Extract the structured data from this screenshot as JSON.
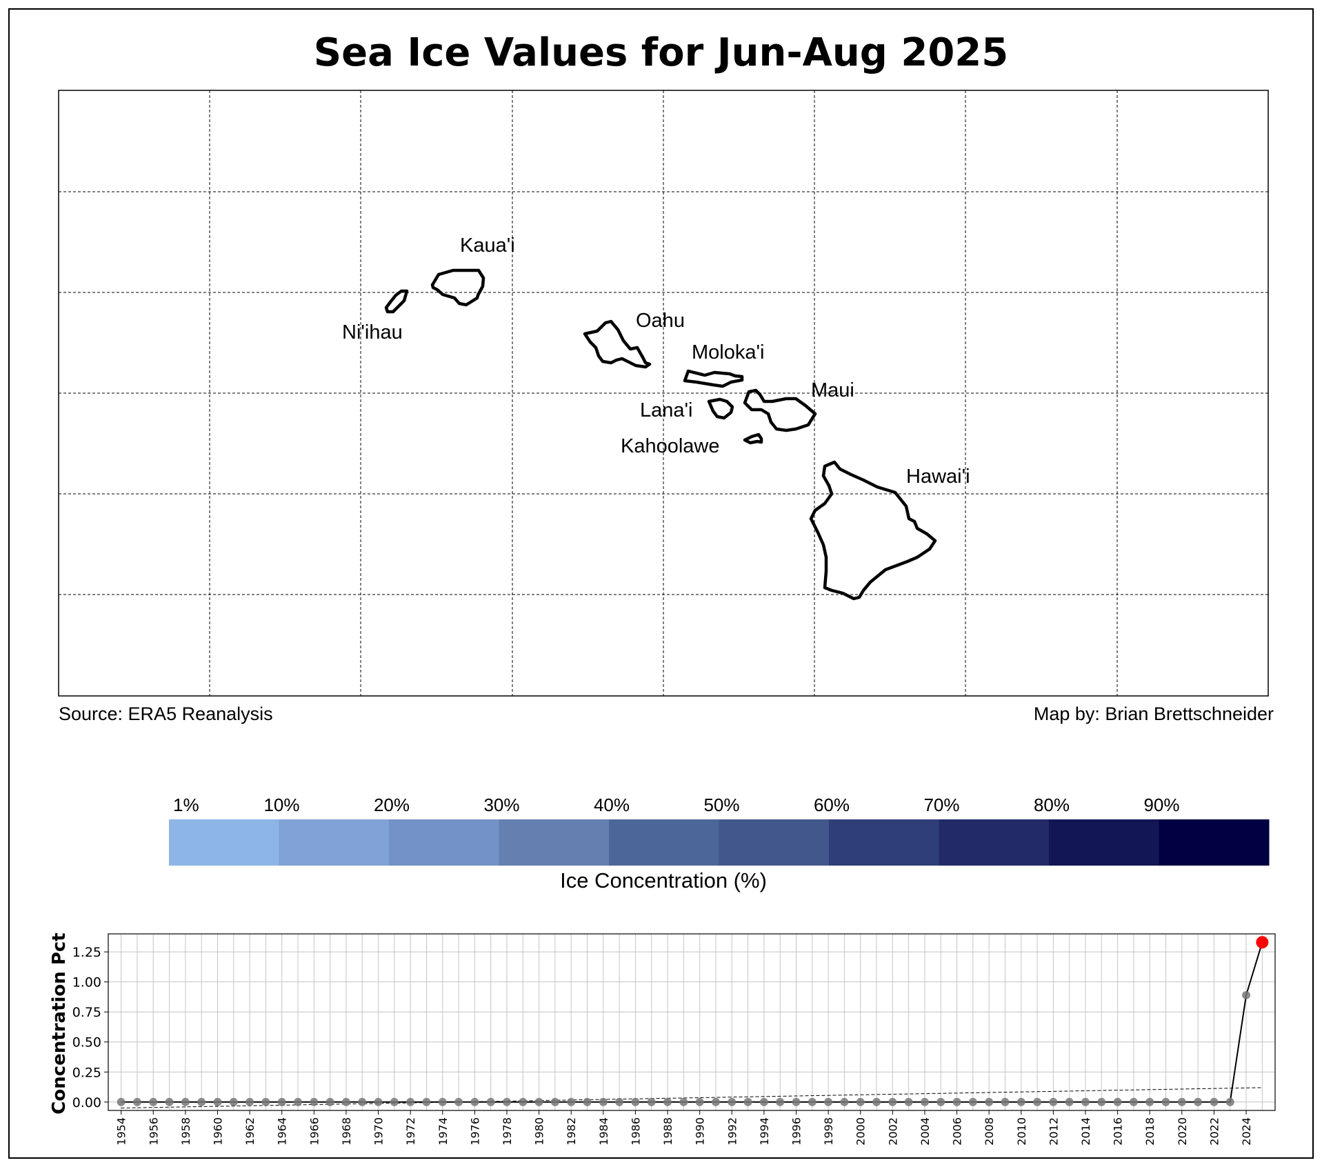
{
  "title": "Sea Ice Values for Jun-Aug 2025",
  "source": "Source: ERA5 Reanalysis",
  "credit": "Map by: Brian Brettschneider",
  "map": {
    "grid": true,
    "islands": [
      {
        "name": "Ni'ihau",
        "icon": "niihau-outline"
      },
      {
        "name": "Kaua'i",
        "icon": "kauai-outline"
      },
      {
        "name": "Oahu",
        "icon": "oahu-outline"
      },
      {
        "name": "Moloka'i",
        "icon": "molokai-outline"
      },
      {
        "name": "Lana'i",
        "icon": "lanai-outline"
      },
      {
        "name": "Maui",
        "icon": "maui-outline"
      },
      {
        "name": "Kahoolawe",
        "icon": "kahoolawe-outline"
      },
      {
        "name": "Hawai'i",
        "icon": "hawaii-outline"
      }
    ]
  },
  "colorbar": {
    "title": "Ice Concentration (%)",
    "ticks": [
      "1%",
      "10%",
      "20%",
      "30%",
      "40%",
      "50%",
      "60%",
      "70%",
      "80%",
      "90%"
    ],
    "colors": [
      "#8db5e6",
      "#80a2d6",
      "#7392c6",
      "#647fb0",
      "#4d6699",
      "#42578b",
      "#2f3e77",
      "#222a68",
      "#121655",
      "#000042"
    ]
  },
  "chart_data": {
    "type": "line",
    "title": "",
    "xlabel": "",
    "ylabel": "Concentration Pct",
    "xlim": [
      1953.2,
      2025.8
    ],
    "ylim": [
      -0.07,
      1.4
    ],
    "yticks": [
      0.0,
      0.25,
      0.5,
      0.75,
      1.0,
      1.25
    ],
    "ytick_labels": [
      "0.00",
      "0.25",
      "0.50",
      "0.75",
      "1.00",
      "1.25"
    ],
    "xticks": [
      1954,
      1956,
      1958,
      1960,
      1962,
      1964,
      1966,
      1968,
      1970,
      1972,
      1974,
      1976,
      1978,
      1980,
      1982,
      1984,
      1986,
      1988,
      1990,
      1992,
      1994,
      1996,
      1998,
      2000,
      2002,
      2004,
      2006,
      2008,
      2010,
      2012,
      2014,
      2016,
      2018,
      2020,
      2022,
      2024
    ],
    "grid": true,
    "series": [
      {
        "x": [
          1954,
          1955,
          1956,
          1957,
          1958,
          1959,
          1960,
          1961,
          1962,
          1963,
          1964,
          1965,
          1966,
          1967,
          1968,
          1969,
          1970,
          1971,
          1972,
          1973,
          1974,
          1975,
          1976,
          1977,
          1978,
          1979,
          1980,
          1981,
          1982,
          1983,
          1984,
          1985,
          1986,
          1987,
          1988,
          1989,
          1990,
          1991,
          1992,
          1993,
          1994,
          1995,
          1996,
          1997,
          1998,
          1999,
          2000,
          2001,
          2002,
          2003,
          2004,
          2005,
          2006,
          2007,
          2008,
          2009,
          2010,
          2011,
          2012,
          2013,
          2014,
          2015,
          2016,
          2017,
          2018,
          2019,
          2020,
          2021,
          2022,
          2023,
          2024,
          2025
        ],
        "values": [
          0,
          0,
          0,
          0,
          0,
          0,
          0,
          0,
          0,
          0,
          0,
          0,
          0,
          0,
          0,
          0,
          0,
          0,
          0,
          0,
          0,
          0,
          0,
          0,
          0,
          0,
          0,
          0,
          0,
          0,
          0,
          0,
          0,
          0,
          0,
          0,
          0,
          0,
          0,
          0,
          0,
          0,
          0,
          0,
          0,
          0,
          0,
          0,
          0,
          0,
          0,
          0,
          0,
          0,
          0,
          0,
          0,
          0,
          0,
          0,
          0,
          0,
          0,
          0,
          0,
          0,
          0,
          0,
          0,
          0,
          0.89,
          1.33
        ],
        "marker_color": "#777777",
        "line_color": "#000000",
        "highlight_last_color": "#ff0000"
      }
    ],
    "trend_line": {
      "x": [
        1954,
        2025
      ],
      "y": [
        -0.05,
        0.12
      ]
    }
  }
}
